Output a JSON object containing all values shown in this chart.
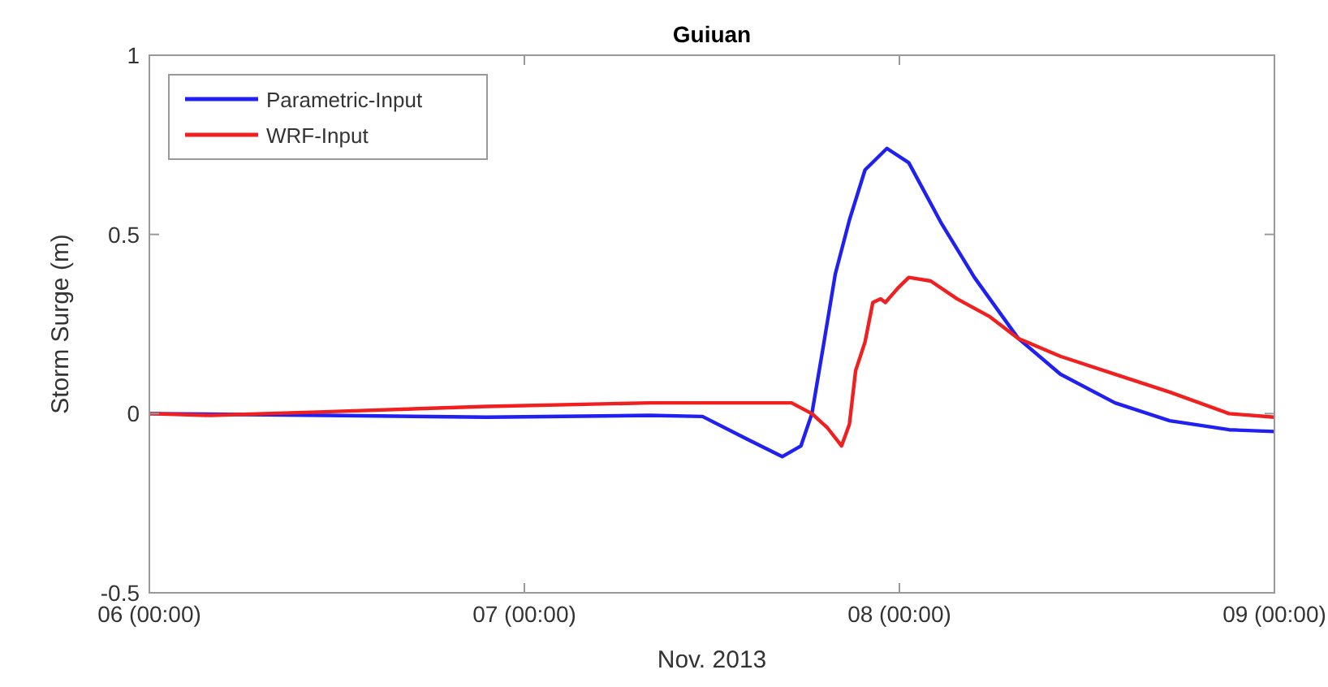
{
  "chart_data": {
    "type": "line",
    "title": "Guiuan",
    "xlabel": "Nov. 2013",
    "ylabel": "Storm Surge (m)",
    "xlim": [
      "2013-11-06T00:00",
      "2013-11-09T00:00"
    ],
    "xticks": [
      {
        "value": "2013-11-06T00:00",
        "label": "06 (00:00)"
      },
      {
        "value": "2013-11-07T00:00",
        "label": "07 (00:00)"
      },
      {
        "value": "2013-11-08T00:00",
        "label": "08 (00:00)"
      },
      {
        "value": "2013-11-09T00:00",
        "label": "09 (00:00)"
      }
    ],
    "ylim": [
      -0.5,
      1
    ],
    "yticks": [
      -0.5,
      0,
      0.5,
      1
    ],
    "legend": "top left",
    "marker": "none",
    "line_style": "solid",
    "series": [
      {
        "name": "Parametric-Input",
        "color": "#2020f0",
        "x": [
          "2013-11-06T00:00",
          "2013-11-06T11:12",
          "2013-11-06T21:36",
          "2013-11-07T08:00",
          "2013-11-07T11:24",
          "2013-11-07T14:12",
          "2013-11-07T16:30",
          "2013-11-07T17:42",
          "2013-11-07T18:24",
          "2013-11-07T19:06",
          "2013-11-07T19:54",
          "2013-11-07T20:48",
          "2013-11-07T21:48",
          "2013-11-07T23:12",
          "2013-11-08T00:36",
          "2013-11-08T02:42",
          "2013-11-08T04:48",
          "2013-11-08T07:36",
          "2013-11-08T10:18",
          "2013-11-08T13:48",
          "2013-11-08T17:18",
          "2013-11-08T21:06",
          "2013-11-09T00:00"
        ],
        "values": [
          0,
          -0.005,
          -0.01,
          -0.005,
          -0.008,
          -0.07,
          -0.12,
          -0.09,
          0,
          0.18,
          0.39,
          0.54,
          0.68,
          0.74,
          0.7,
          0.53,
          0.38,
          0.21,
          0.11,
          0.03,
          -0.02,
          -0.045,
          -0.05
        ]
      },
      {
        "name": "WRF-Input",
        "color": "#f02020",
        "x": [
          "2013-11-06T00:00",
          "2013-11-06T03:54",
          "2013-11-06T11:12",
          "2013-11-06T21:36",
          "2013-11-07T08:00",
          "2013-11-07T15:18",
          "2013-11-07T17:06",
          "2013-11-07T18:24",
          "2013-11-07T19:24",
          "2013-11-07T20:18",
          "2013-11-07T20:48",
          "2013-11-07T21:12",
          "2013-11-07T21:48",
          "2013-11-07T22:18",
          "2013-11-07T22:48",
          "2013-11-07T23:06",
          "2013-11-07T23:54",
          "2013-11-08T00:36",
          "2013-11-08T02:00",
          "2013-11-08T03:42",
          "2013-11-08T05:48",
          "2013-11-08T07:36",
          "2013-11-08T10:18",
          "2013-11-08T13:48",
          "2013-11-08T17:18",
          "2013-11-08T21:06",
          "2013-11-09T00:00"
        ],
        "values": [
          0,
          -0.005,
          0.005,
          0.02,
          0.03,
          0.03,
          0.03,
          0,
          -0.04,
          -0.09,
          -0.03,
          0.12,
          0.2,
          0.31,
          0.32,
          0.31,
          0.35,
          0.38,
          0.37,
          0.32,
          0.27,
          0.21,
          0.16,
          0.11,
          0.06,
          0,
          -0.01
        ]
      }
    ]
  }
}
